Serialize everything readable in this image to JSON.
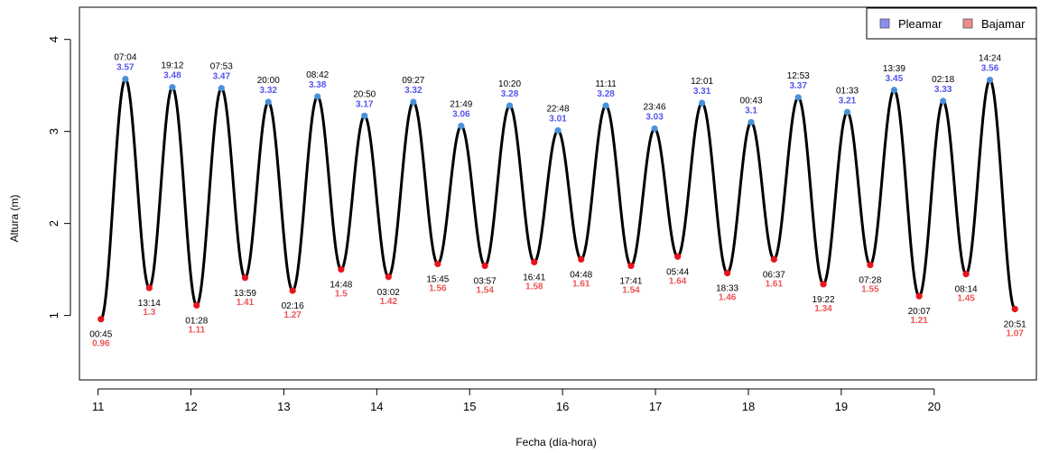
{
  "chart_data": {
    "type": "line",
    "xlabel": "Fecha (día-hora)",
    "ylabel": "Altura (m)",
    "xlim": [
      10.8,
      21.1
    ],
    "ylim": [
      0.3,
      4.35
    ],
    "x_ticks": [
      "11",
      "12",
      "13",
      "14",
      "15",
      "16",
      "17",
      "18",
      "19",
      "20"
    ],
    "y_ticks": [
      "1",
      "2",
      "3",
      "4"
    ],
    "legend": {
      "position": "top-right",
      "entries": [
        {
          "name": "Pleamar",
          "color": "#8b8bf0"
        },
        {
          "name": "Bajamar",
          "color": "#f08b8b"
        }
      ]
    },
    "colors": {
      "curve": "#000000",
      "high_point": "#4a90d9",
      "low_point": "#e8141b",
      "high_text": "#5555ee",
      "low_text": "#ee5555"
    },
    "extremes": [
      {
        "kind": "low",
        "time": "00:45",
        "height": "0.96"
      },
      {
        "kind": "high",
        "time": "07:04",
        "height": "3.57"
      },
      {
        "kind": "low",
        "time": "13:14",
        "height": "1.3"
      },
      {
        "kind": "high",
        "time": "19:12",
        "height": "3.48"
      },
      {
        "kind": "low",
        "time": "01:28",
        "height": "1.11"
      },
      {
        "kind": "high",
        "time": "07:53",
        "height": "3.47"
      },
      {
        "kind": "low",
        "time": "13:59",
        "height": "1.41"
      },
      {
        "kind": "high",
        "time": "20:00",
        "height": "3.32"
      },
      {
        "kind": "low",
        "time": "02:16",
        "height": "1.27"
      },
      {
        "kind": "high",
        "time": "08:42",
        "height": "3.38"
      },
      {
        "kind": "low",
        "time": "14:48",
        "height": "1.5"
      },
      {
        "kind": "high",
        "time": "20:50",
        "height": "3.17"
      },
      {
        "kind": "low",
        "time": "03:02",
        "height": "1.42"
      },
      {
        "kind": "high",
        "time": "09:27",
        "height": "3.32"
      },
      {
        "kind": "low",
        "time": "15:45",
        "height": "1.56"
      },
      {
        "kind": "high",
        "time": "21:49",
        "height": "3.06"
      },
      {
        "kind": "low",
        "time": "03:57",
        "height": "1.54"
      },
      {
        "kind": "high",
        "time": "10:20",
        "height": "3.28"
      },
      {
        "kind": "low",
        "time": "16:41",
        "height": "1.58"
      },
      {
        "kind": "high",
        "time": "22:48",
        "height": "3.01"
      },
      {
        "kind": "low",
        "time": "04:48",
        "height": "1.61"
      },
      {
        "kind": "high",
        "time": "11:11",
        "height": "3.28"
      },
      {
        "kind": "low",
        "time": "17:41",
        "height": "1.54"
      },
      {
        "kind": "high",
        "time": "23:46",
        "height": "3.03"
      },
      {
        "kind": "low",
        "time": "05:44",
        "height": "1.64"
      },
      {
        "kind": "high",
        "time": "12:01",
        "height": "3.31"
      },
      {
        "kind": "low",
        "time": "18:33",
        "height": "1.46"
      },
      {
        "kind": "high",
        "time": "00:43",
        "height": "3.1"
      },
      {
        "kind": "low",
        "time": "06:37",
        "height": "1.61"
      },
      {
        "kind": "high",
        "time": "12:53",
        "height": "3.37"
      },
      {
        "kind": "low",
        "time": "19:22",
        "height": "1.34"
      },
      {
        "kind": "high",
        "time": "01:33",
        "height": "3.21"
      },
      {
        "kind": "low",
        "time": "07:28",
        "height": "1.55"
      },
      {
        "kind": "high",
        "time": "13:39",
        "height": "3.45"
      },
      {
        "kind": "low",
        "time": "20:07",
        "height": "1.21"
      },
      {
        "kind": "high",
        "time": "02:18",
        "height": "3.33"
      },
      {
        "kind": "low",
        "time": "08:14",
        "height": "1.45"
      },
      {
        "kind": "high",
        "time": "14:24",
        "height": "3.56"
      },
      {
        "kind": "low",
        "time": "20:51",
        "height": "1.07"
      }
    ]
  }
}
